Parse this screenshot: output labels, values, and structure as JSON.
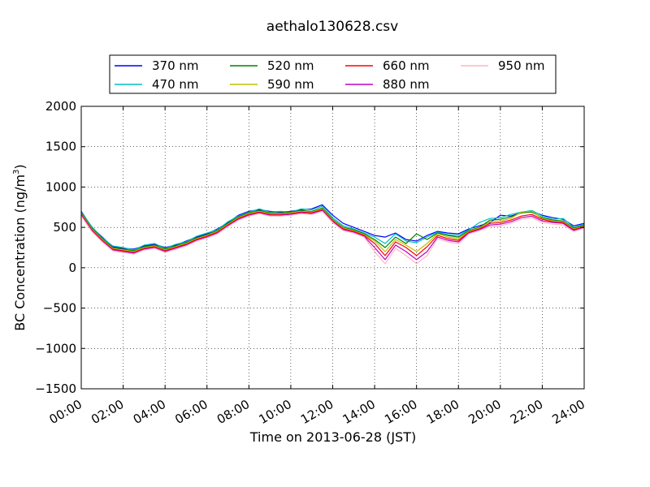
{
  "chart_data": {
    "type": "line",
    "title": "aethalo130628.csv",
    "xlabel": "Time on 2013-06-28 (JST)",
    "ylabel": "BC Concentration (ng/m³)",
    "ylabel_main": "BC Concentration (ng/m",
    "ylabel_sup": "3",
    "ylabel_end": ")",
    "xlim": [
      "00:00",
      "24:00"
    ],
    "ylim": [
      -1500,
      2000
    ],
    "x_ticks": [
      "00:00",
      "02:00",
      "04:00",
      "06:00",
      "08:00",
      "10:00",
      "12:00",
      "14:00",
      "16:00",
      "18:00",
      "20:00",
      "22:00",
      "24:00"
    ],
    "y_ticks": [
      "−1500",
      "−1000",
      "−500",
      "0",
      "500",
      "1000",
      "1500",
      "2000"
    ],
    "grid": true,
    "legend_position": "top, above plot",
    "legend": [
      {
        "label": "370 nm",
        "color": "#0000ff"
      },
      {
        "label": "470 nm",
        "color": "#00bfbf"
      },
      {
        "label": "520 nm",
        "color": "#008000"
      },
      {
        "label": "590 nm",
        "color": "#bfbf00"
      },
      {
        "label": "660 nm",
        "color": "#ff0000"
      },
      {
        "label": "880 nm",
        "color": "#bf00bf"
      },
      {
        "label": "950 nm",
        "color": "#ffb6c1"
      }
    ],
    "hours": [
      0,
      0.5,
      1,
      1.5,
      2,
      2.5,
      3,
      3.5,
      4,
      4.5,
      5,
      5.5,
      6,
      6.5,
      7,
      7.5,
      8,
      8.5,
      9,
      9.5,
      10,
      10.5,
      11,
      11.5,
      12,
      12.5,
      13,
      13.5,
      14,
      14.5,
      15,
      15.5,
      16,
      16.5,
      17,
      17.5,
      18,
      18.5,
      19,
      19.5,
      20,
      20.5,
      21,
      21.5,
      22,
      22.5,
      23,
      23.5,
      24
    ],
    "series": [
      {
        "name": "370 nm",
        "color": "#0000ff",
        "values": [
          700,
          500,
          380,
          260,
          240,
          230,
          270,
          290,
          250,
          280,
          330,
          380,
          420,
          480,
          560,
          650,
          700,
          720,
          700,
          690,
          700,
          720,
          730,
          780,
          650,
          550,
          500,
          450,
          400,
          380,
          430,
          350,
          330,
          400,
          450,
          430,
          420,
          480,
          520,
          560,
          650,
          640,
          680,
          700,
          650,
          620,
          600,
          520,
          550
        ]
      },
      {
        "name": "470 nm",
        "color": "#00bfbf",
        "values": [
          690,
          510,
          370,
          270,
          250,
          220,
          280,
          300,
          240,
          290,
          320,
          390,
          430,
          470,
          570,
          640,
          690,
          730,
          690,
          700,
          690,
          730,
          720,
          760,
          620,
          520,
          480,
          430,
          380,
          300,
          420,
          330,
          310,
          380,
          440,
          410,
          400,
          470,
          560,
          610,
          620,
          660,
          690,
          710,
          640,
          600,
          610,
          500,
          540
        ]
      },
      {
        "name": "520 nm",
        "color": "#008000",
        "values": [
          680,
          490,
          360,
          250,
          230,
          210,
          260,
          280,
          230,
          270,
          310,
          370,
          410,
          460,
          550,
          630,
          680,
          710,
          680,
          680,
          690,
          710,
          700,
          740,
          600,
          500,
          470,
          420,
          350,
          250,
          380,
          300,
          420,
          350,
          430,
          400,
          380,
          460,
          500,
          590,
          600,
          630,
          680,
          690,
          620,
          590,
          580,
          490,
          530
        ]
      },
      {
        "name": "590 nm",
        "color": "#bfbf00",
        "values": [
          670,
          480,
          350,
          240,
          220,
          200,
          250,
          270,
          220,
          260,
          300,
          360,
          400,
          450,
          540,
          620,
          670,
          700,
          670,
          670,
          680,
          700,
          690,
          730,
          590,
          490,
          460,
          410,
          330,
          200,
          350,
          280,
          200,
          300,
          420,
          380,
          360,
          450,
          490,
          570,
          580,
          610,
          690,
          700,
          610,
          580,
          570,
          480,
          520
        ]
      },
      {
        "name": "660 nm",
        "color": "#ff0000",
        "values": [
          660,
          470,
          340,
          230,
          210,
          190,
          240,
          260,
          210,
          250,
          290,
          350,
          390,
          440,
          530,
          610,
          660,
          690,
          660,
          660,
          670,
          690,
          680,
          720,
          580,
          480,
          450,
          400,
          300,
          150,
          320,
          250,
          150,
          260,
          400,
          360,
          340,
          440,
          480,
          550,
          560,
          590,
          640,
          660,
          600,
          570,
          560,
          470,
          510
        ]
      },
      {
        "name": "880 nm",
        "color": "#bf00bf",
        "values": [
          650,
          460,
          330,
          220,
          200,
          180,
          230,
          250,
          200,
          240,
          280,
          340,
          380,
          430,
          520,
          600,
          650,
          680,
          650,
          650,
          660,
          680,
          670,
          710,
          570,
          470,
          440,
          390,
          250,
          100,
          280,
          200,
          100,
          200,
          380,
          340,
          320,
          430,
          470,
          530,
          540,
          570,
          620,
          640,
          580,
          560,
          550,
          460,
          500
        ]
      },
      {
        "name": "950 nm",
        "color": "#ffb6c1",
        "values": [
          640,
          450,
          320,
          210,
          190,
          170,
          220,
          240,
          190,
          230,
          270,
          330,
          370,
          420,
          510,
          590,
          640,
          670,
          640,
          640,
          650,
          670,
          660,
          700,
          560,
          460,
          430,
          380,
          200,
          50,
          240,
          150,
          50,
          150,
          360,
          320,
          300,
          420,
          460,
          510,
          520,
          550,
          600,
          620,
          560,
          540,
          530,
          450,
          490
        ]
      }
    ]
  }
}
